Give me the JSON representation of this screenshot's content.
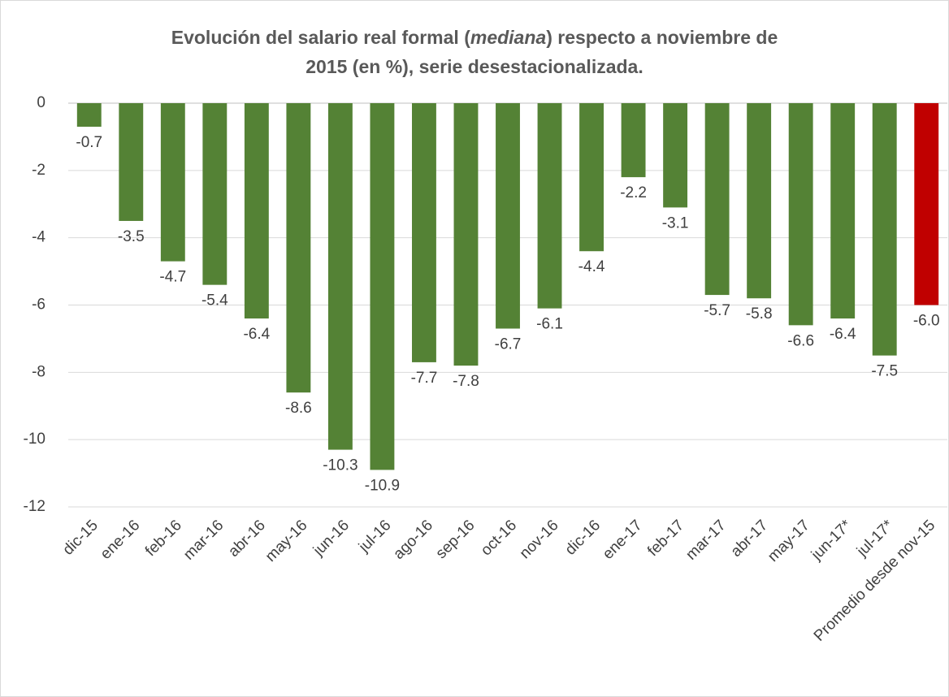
{
  "chart_data": {
    "type": "bar",
    "title": [
      "Evolución del salario real formal (",
      "mediana",
      ") respecto a noviembre de",
      "2015 (en %), serie desestacionalizada."
    ],
    "categories": [
      "dic-15",
      "ene-16",
      "feb-16",
      "mar-16",
      "abr-16",
      "may-16",
      "jun-16",
      "jul-16",
      "ago-16",
      "sep-16",
      "oct-16",
      "nov-16",
      "dic-16",
      "ene-17",
      "feb-17",
      "mar-17",
      "abr-17",
      "may-17",
      "jun-17*",
      "jul-17*",
      "Promedio desde nov-15"
    ],
    "values": [
      -0.7,
      -3.5,
      -4.7,
      -5.4,
      -6.4,
      -8.6,
      -10.3,
      -10.9,
      -7.7,
      -7.8,
      -6.7,
      -6.1,
      -4.4,
      -2.2,
      -3.1,
      -5.7,
      -5.8,
      -6.6,
      -6.4,
      -7.5,
      -6.0
    ],
    "value_labels": [
      "-0.7",
      "-3.5",
      "-4.7",
      "-5.4",
      "-6.4",
      "-8.6",
      "-10.3",
      "-10.9",
      "-7.7",
      "-7.8",
      "-6.7",
      "-6.1",
      "-4.4",
      "-2.2",
      "-3.1",
      "-5.7",
      "-5.8",
      "-6.6",
      "-6.4",
      "-7.5",
      "-6.0"
    ],
    "colors": [
      "#548235",
      "#548235",
      "#548235",
      "#548235",
      "#548235",
      "#548235",
      "#548235",
      "#548235",
      "#548235",
      "#548235",
      "#548235",
      "#548235",
      "#548235",
      "#548235",
      "#548235",
      "#548235",
      "#548235",
      "#548235",
      "#548235",
      "#548235",
      "#c00000"
    ],
    "ylim": [
      -12,
      0
    ],
    "yticks": [
      0,
      -2,
      -4,
      -6,
      -8,
      -10,
      -12
    ],
    "grid": true
  }
}
